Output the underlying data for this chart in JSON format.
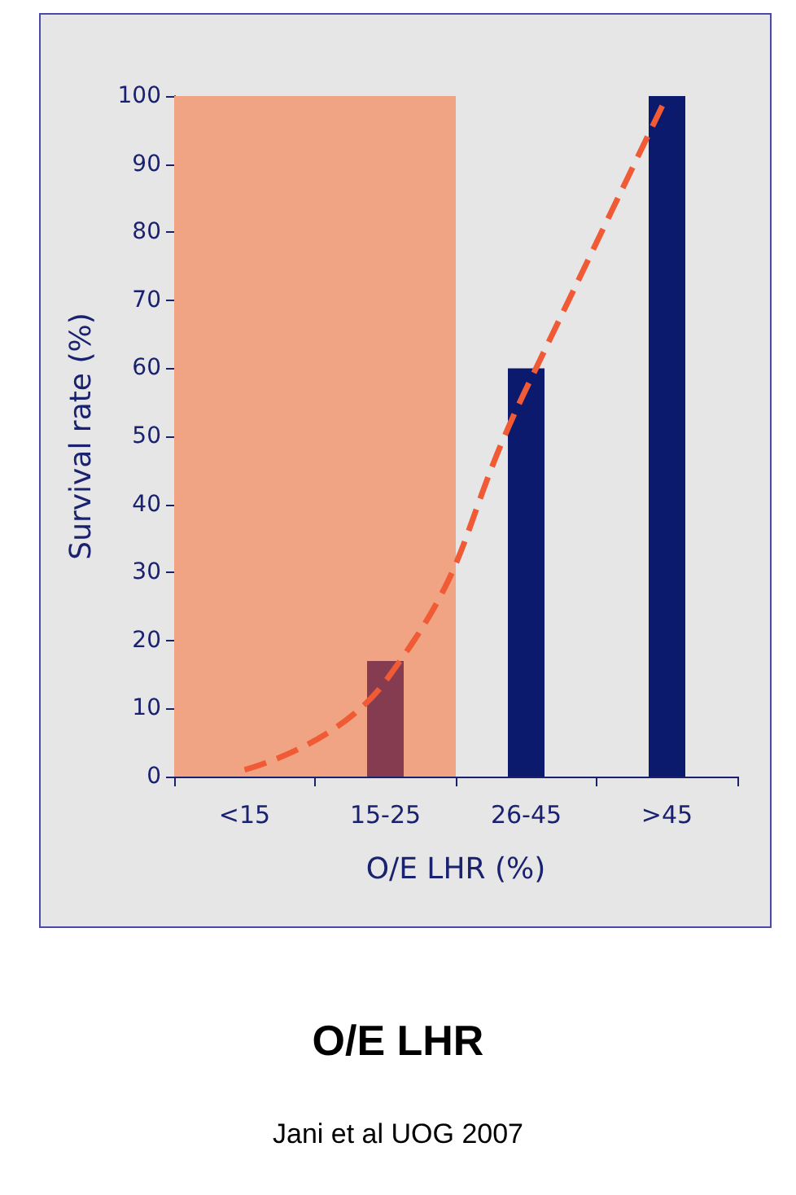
{
  "chart_data": {
    "type": "bar",
    "title": "O/E LHR",
    "xlabel": "O/E LHR (%)",
    "ylabel": "Survival rate (%)",
    "annotations": [
      "Jani et al UOG 2007"
    ],
    "categories": [
      "<15",
      "15-25",
      "26-45",
      ">45"
    ],
    "series": [
      {
        "values": [
          0,
          17,
          60,
          100
        ],
        "colors": [
          "#7a2a45",
          "#853b50",
          "#0c1a6e",
          "#0c1a6e"
        ]
      },
      {
        "type": "line",
        "values": [
          1,
          14,
          57,
          100
        ],
        "color": "#f05a35",
        "line_style": "dashed",
        "marker": "none"
      }
    ],
    "bands": [
      {
        "axis": "x",
        "from": "<15",
        "to": "15-25",
        "color": "#f0a484"
      }
    ],
    "ylim": [
      0,
      100
    ],
    "yticks": [
      0,
      10,
      20,
      30,
      40,
      50,
      60,
      70,
      80,
      90,
      100
    ],
    "grid": false
  }
}
